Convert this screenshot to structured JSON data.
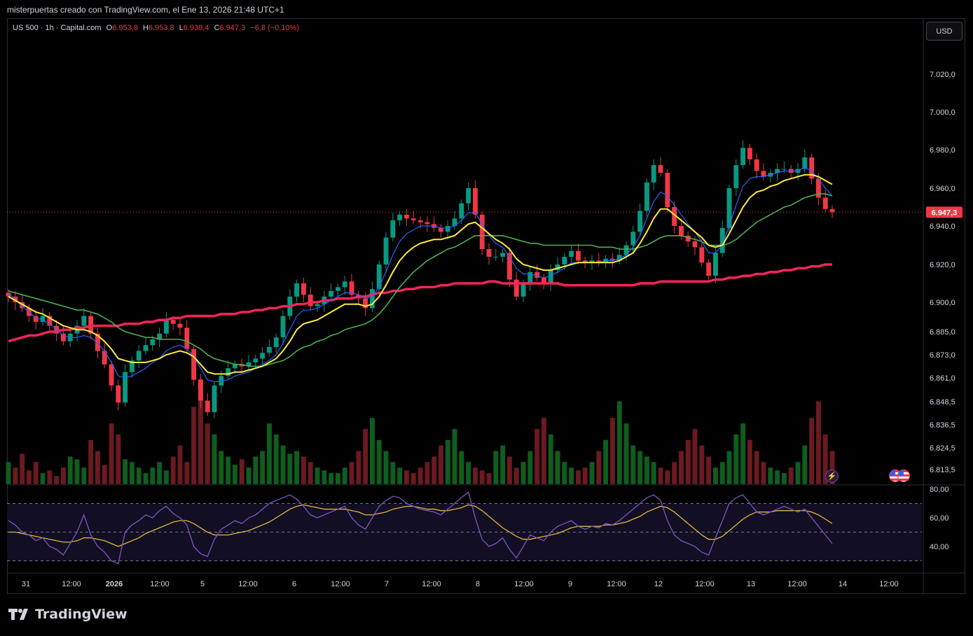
{
  "header": "misterpuertas creado con TradingView.com, el Ene 13, 2026 21:48 UTC+1",
  "legend": {
    "symbol": "US 500 · 1h · Capital.com",
    "open_label": "O",
    "open": "6.953,8",
    "high_label": "H",
    "high": "6.953,8",
    "low_label": "L",
    "low": "6.938,4",
    "close_label": "C",
    "close": "6.947,3",
    "change": "−6,8 (−0,10%)"
  },
  "currency_button": "USD",
  "brand": "TradingView",
  "colors": {
    "up": "#089981",
    "down": "#f23645",
    "ema_fast": "#2962ff",
    "ema_yellow": "#ffeb3b",
    "ema_green": "#4caf50",
    "ema_red": "#f7245a",
    "rsi": "#7e57c2",
    "rsi_ma": "#e0b83a",
    "vol_up": "#0f5d1f",
    "vol_down": "#6b1a20"
  },
  "chart_data": {
    "type": "candlestick",
    "symbol": "US 500",
    "interval": "1h",
    "price_axis_labels": [
      "7.020,0",
      "7.000,0",
      "6.980,0",
      "6.960,0",
      "6.940,0",
      "6.920,0",
      "6.900,0",
      "6.885,0",
      "6.873,0",
      "6.861,0",
      "6.848,5",
      "6.836,5",
      "6.824,5",
      "6.813,5"
    ],
    "last_price_label": "6.947,3",
    "time_axis_labels": [
      "31",
      "12:00",
      "2026",
      "12:00",
      "5",
      "12:00",
      "6",
      "12:00",
      "7",
      "12:00",
      "8",
      "12:00",
      "9",
      "12:00",
      "12",
      "12:00",
      "13",
      "12:00",
      "14",
      "12:00"
    ],
    "rsi_axis_labels": [
      "80,00",
      "60,00",
      "40,00"
    ],
    "price_path": [
      6903,
      6900,
      6897,
      6893,
      6890,
      6893,
      6888,
      6884,
      6880,
      6884,
      6888,
      6893,
      6884,
      6875,
      6868,
      6857,
      6848,
      6864,
      6870,
      6875,
      6878,
      6881,
      6884,
      6891,
      6889,
      6887,
      6876,
      6860,
      6849,
      6843,
      6857,
      6862,
      6866,
      6868,
      6867,
      6869,
      6871,
      6874,
      6877,
      6882,
      6893,
      6903,
      6910,
      6904,
      6898,
      6899,
      6903,
      6906,
      6908,
      6911,
      6904,
      6902,
      6897,
      6907,
      6920,
      6934,
      6943,
      6946,
      6944,
      6943,
      6942,
      6941,
      6939,
      6937,
      6940,
      6944,
      6952,
      6960,
      6946,
      6928,
      6924,
      6924,
      6926,
      6912,
      6903,
      6910,
      6916,
      6913,
      6910,
      6917,
      6920,
      6924,
      6927,
      6922,
      6921,
      6922,
      6921,
      6923,
      6922,
      6925,
      6930,
      6937,
      6948,
      6963,
      6972,
      6968,
      6950,
      6940,
      6935,
      6932,
      6929,
      6921,
      6914,
      6926,
      6939,
      6960,
      6972,
      6981,
      6975,
      6969,
      6966,
      6968,
      6970,
      6970,
      6968,
      6970,
      6976,
      6965,
      6955,
      6949,
      6947.3
    ],
    "ema_fast": [
      6905,
      6901,
      6898,
      6895,
      6892,
      6891,
      6889,
      6886,
      6883,
      6882,
      6882,
      6883,
      6882,
      6879,
      6875,
      6869,
      6862,
      6861,
      6862,
      6864,
      6866,
      6869,
      6871,
      6875,
      6877,
      6878,
      6876,
      6872,
      6866,
      6860,
      6859,
      6859,
      6860,
      6862,
      6863,
      6864,
      6866,
      6868,
      6870,
      6873,
      6879,
      6886,
      6893,
      6896,
      6896,
      6897,
      6899,
      6901,
      6903,
      6905,
      6905,
      6904,
      6902,
      6903,
      6908,
      6916,
      6925,
      6932,
      6936,
      6938,
      6940,
      6940,
      6940,
      6939,
      6939,
      6940,
      6943,
      6947,
      6947,
      6941,
      6935,
      6931,
      6929,
      6924,
      6918,
      6915,
      6915,
      6914,
      6913,
      6914,
      6916,
      6918,
      6921,
      6921,
      6921,
      6921,
      6921,
      6922,
      6922,
      6923,
      6925,
      6929,
      6935,
      6944,
      6953,
      6958,
      6956,
      6951,
      6946,
      6941,
      6937,
      6932,
      6926,
      6926,
      6930,
      6940,
      6951,
      6961,
      6965,
      6966,
      6966,
      6967,
      6968,
      6969,
      6969,
      6969,
      6971,
      6969,
      6965,
      6960,
      6956
    ],
    "ema_yellow": [
      6903,
      6901,
      6899,
      6897,
      6895,
      6894,
      6892,
      6890,
      6888,
      6887,
      6886,
      6886,
      6885,
      6883,
      6880,
      6876,
      6871,
      6870,
      6869,
      6869,
      6869,
      6870,
      6871,
      6873,
      6874,
      6875,
      6874,
      6872,
      6868,
      6864,
      6863,
      6863,
      6863,
      6864,
      6864,
      6865,
      6866,
      6867,
      6869,
      6871,
      6875,
      6880,
      6886,
      6889,
      6890,
      6891,
      6893,
      6895,
      6897,
      6899,
      6899,
      6899,
      6898,
      6899,
      6903,
      6909,
      6916,
      6922,
      6926,
      6929,
      6931,
      6932,
      6933,
      6933,
      6934,
      6935,
      6938,
      6941,
      6942,
      6939,
      6936,
      6933,
      6931,
      6928,
      6923,
      6920,
      6919,
      6918,
      6917,
      6917,
      6918,
      6919,
      6920,
      6921,
      6921,
      6921,
      6921,
      6921,
      6921,
      6922,
      6924,
      6926,
      6931,
      6937,
      6944,
      6949,
      6949,
      6946,
      6943,
      6940,
      6937,
      6934,
      6930,
      6929,
      6930,
      6936,
      6943,
      6950,
      6955,
      6958,
      6959,
      6961,
      6962,
      6964,
      6965,
      6966,
      6967,
      6967,
      6966,
      6964,
      6962
    ],
    "ema_green": [
      6906,
      6905,
      6904,
      6903,
      6902,
      6901,
      6900,
      6899,
      6898,
      6897,
      6896,
      6896,
      6895,
      6894,
      6892,
      6890,
      6887,
      6885,
      6884,
      6883,
      6882,
      6882,
      6881,
      6881,
      6881,
      6881,
      6880,
      6878,
      6876,
      6873,
      6871,
      6870,
      6869,
      6868,
      6868,
      6867,
      6867,
      6867,
      6868,
      6869,
      6870,
      6872,
      6875,
      6877,
      6878,
      6880,
      6881,
      6883,
      6884,
      6886,
      6887,
      6888,
      6889,
      6891,
      6894,
      6898,
      6903,
      6908,
      6912,
      6916,
      6919,
      6922,
      6924,
      6926,
      6928,
      6929,
      6931,
      6933,
      6935,
      6935,
      6935,
      6935,
      6935,
      6934,
      6933,
      6932,
      6931,
      6931,
      6930,
      6930,
      6930,
      6930,
      6930,
      6930,
      6930,
      6930,
      6929,
      6929,
      6929,
      6928,
      6928,
      6928,
      6929,
      6930,
      6932,
      6934,
      6935,
      6935,
      6935,
      6934,
      6933,
      6932,
      6930,
      6930,
      6930,
      6931,
      6933,
      6936,
      6939,
      6942,
      6944,
      6946,
      6948,
      6950,
      6951,
      6953,
      6955,
      6956,
      6957,
      6957,
      6956
    ],
    "ema_red": [
      6880,
      6881,
      6882,
      6883,
      6883,
      6884,
      6885,
      6885,
      6886,
      6886,
      6887,
      6887,
      6888,
      6888,
      6888,
      6888,
      6888,
      6889,
      6889,
      6889,
      6890,
      6890,
      6891,
      6891,
      6892,
      6892,
      6893,
      6893,
      6893,
      6893,
      6893,
      6894,
      6894,
      6894,
      6895,
      6895,
      6896,
      6896,
      6897,
      6897,
      6898,
      6898,
      6899,
      6899,
      6900,
      6900,
      6901,
      6901,
      6902,
      6902,
      6902,
      6903,
      6903,
      6904,
      6905,
      6905,
      6906,
      6906,
      6907,
      6907,
      6908,
      6908,
      6908,
      6909,
      6909,
      6910,
      6910,
      6910,
      6910,
      6910,
      6911,
      6911,
      6910,
      6910,
      6910,
      6910,
      6910,
      6910,
      6910,
      6910,
      6910,
      6909,
      6909,
      6909,
      6909,
      6909,
      6909,
      6909,
      6909,
      6909,
      6909,
      6909,
      6910,
      6910,
      6910,
      6911,
      6911,
      6911,
      6911,
      6911,
      6911,
      6911,
      6911,
      6912,
      6912,
      6913,
      6913,
      6914,
      6914,
      6915,
      6915,
      6916,
      6916,
      6917,
      6917,
      6918,
      6918,
      6919,
      6919,
      6920,
      6920
    ],
    "volume": [
      40,
      30,
      55,
      25,
      40,
      20,
      25,
      15,
      30,
      50,
      45,
      30,
      80,
      60,
      35,
      110,
      90,
      45,
      40,
      30,
      20,
      30,
      40,
      25,
      50,
      70,
      40,
      140,
      190,
      110,
      90,
      60,
      50,
      35,
      45,
      30,
      50,
      60,
      110,
      90,
      70,
      55,
      60,
      50,
      40,
      30,
      25,
      20,
      20,
      30,
      40,
      60,
      100,
      120,
      80,
      60,
      40,
      30,
      25,
      20,
      30,
      40,
      50,
      70,
      80,
      100,
      60,
      40,
      30,
      25,
      20,
      60,
      70,
      50,
      30,
      40,
      60,
      100,
      120,
      90,
      60,
      40,
      30,
      25,
      30,
      40,
      60,
      80,
      120,
      150,
      110,
      70,
      60,
      50,
      40,
      30,
      25,
      40,
      60,
      80,
      100,
      70,
      50,
      30,
      40,
      60,
      90,
      110,
      80,
      60,
      40,
      30,
      25,
      20,
      30,
      40,
      70,
      120,
      150,
      90,
      60
    ],
    "rsi": [
      58,
      55,
      50,
      48,
      44,
      46,
      40,
      38,
      34,
      42,
      50,
      62,
      48,
      40,
      36,
      30,
      28,
      50,
      55,
      58,
      62,
      60,
      65,
      68,
      63,
      60,
      55,
      40,
      35,
      33,
      45,
      52,
      55,
      58,
      56,
      60,
      62,
      66,
      70,
      72,
      74,
      76,
      73,
      68,
      62,
      60,
      62,
      64,
      66,
      68,
      60,
      55,
      52,
      60,
      68,
      72,
      75,
      74,
      70,
      68,
      66,
      65,
      64,
      62,
      66,
      70,
      74,
      78,
      60,
      45,
      40,
      42,
      46,
      38,
      32,
      40,
      48,
      46,
      44,
      50,
      54,
      56,
      58,
      54,
      52,
      54,
      53,
      56,
      55,
      58,
      62,
      66,
      70,
      74,
      76,
      72,
      58,
      48,
      44,
      42,
      40,
      36,
      34,
      46,
      58,
      70,
      74,
      76,
      70,
      64,
      62,
      64,
      66,
      68,
      66,
      64,
      66,
      60,
      54,
      48,
      42
    ],
    "rsi_ma": [
      50,
      50,
      49,
      48,
      47,
      46,
      45,
      44,
      43,
      43,
      44,
      46,
      46,
      45,
      44,
      42,
      40,
      42,
      44,
      46,
      49,
      51,
      53,
      55,
      57,
      58,
      58,
      56,
      53,
      50,
      48,
      48,
      48,
      49,
      50,
      51,
      53,
      55,
      57,
      60,
      63,
      66,
      68,
      69,
      68,
      67,
      66,
      66,
      66,
      66,
      65,
      64,
      62,
      62,
      63,
      64,
      66,
      67,
      68,
      68,
      67,
      66,
      66,
      65,
      65,
      66,
      67,
      69,
      68,
      65,
      61,
      57,
      53,
      50,
      47,
      45,
      45,
      46,
      47,
      48,
      49,
      51,
      53,
      54,
      54,
      54,
      54,
      55,
      55,
      56,
      57,
      59,
      61,
      64,
      66,
      68,
      67,
      64,
      60,
      56,
      52,
      48,
      45,
      45,
      47,
      51,
      55,
      59,
      62,
      64,
      64,
      64,
      65,
      65,
      65,
      65,
      65,
      64,
      62,
      59,
      56
    ],
    "rsi_levels": [
      70,
      50,
      30
    ]
  }
}
